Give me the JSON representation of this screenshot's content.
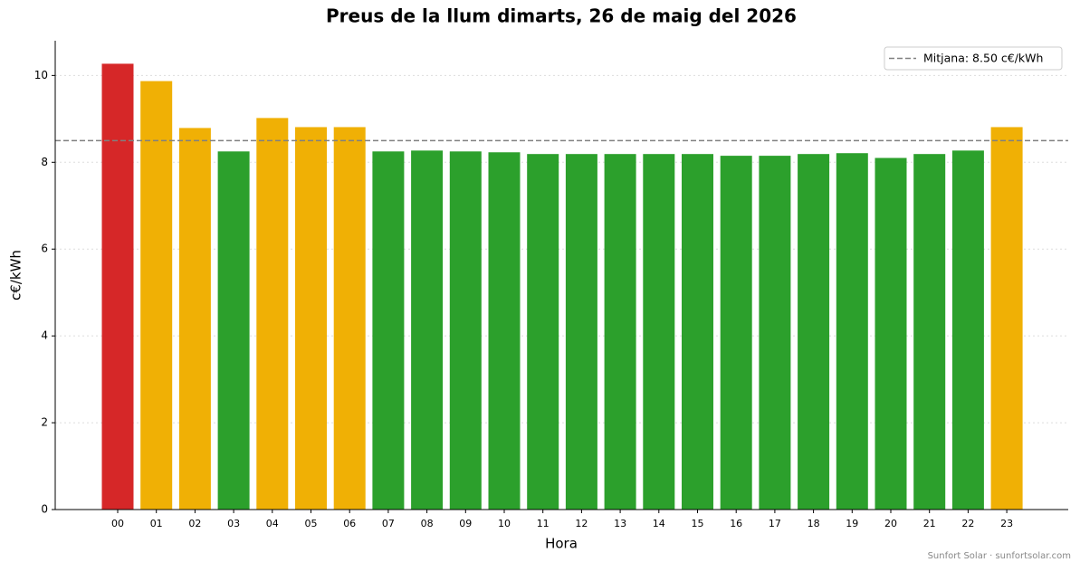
{
  "chart_data": {
    "type": "bar",
    "title": "Preus de la llum dimarts, 26 de maig del 2026",
    "x_label": "Hora",
    "y_label": "c€/kWh",
    "categories": [
      "00",
      "01",
      "02",
      "03",
      "04",
      "05",
      "06",
      "07",
      "08",
      "09",
      "10",
      "11",
      "12",
      "13",
      "14",
      "15",
      "16",
      "17",
      "18",
      "19",
      "20",
      "21",
      "22",
      "23"
    ],
    "values": [
      10.27,
      9.87,
      8.79,
      8.25,
      9.02,
      8.81,
      8.81,
      8.25,
      8.27,
      8.25,
      8.23,
      8.19,
      8.19,
      8.19,
      8.19,
      8.19,
      8.15,
      8.15,
      8.19,
      8.21,
      8.1,
      8.19,
      8.27,
      8.81
    ],
    "colors": [
      "#d62728",
      "#f0b005",
      "#f0b005",
      "#2ca02c",
      "#f0b005",
      "#f0b005",
      "#f0b005",
      "#2ca02c",
      "#2ca02c",
      "#2ca02c",
      "#2ca02c",
      "#2ca02c",
      "#2ca02c",
      "#2ca02c",
      "#2ca02c",
      "#2ca02c",
      "#2ca02c",
      "#2ca02c",
      "#2ca02c",
      "#2ca02c",
      "#2ca02c",
      "#2ca02c",
      "#2ca02c",
      "#f0b005"
    ],
    "mean_line": {
      "value": 8.5,
      "label": "Mitjana: 8.50 c€/kWh",
      "color": "#808080"
    },
    "ylim": [
      0,
      10.8
    ],
    "yticks": [
      0,
      2,
      4,
      6,
      8,
      10
    ],
    "grid": true,
    "legend": "upper right",
    "footer": "Sunfort Solar · sunfortsolar.com"
  }
}
